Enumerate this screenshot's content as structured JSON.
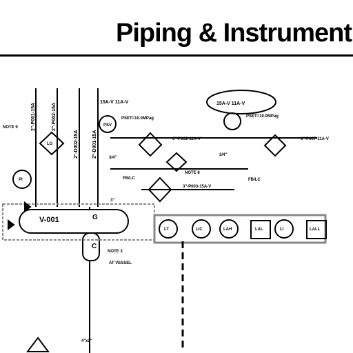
{
  "title": "Piping & Instrument",
  "vessel": {
    "tag": "V-001",
    "nozzle_top": "G",
    "nozzle_bottom": "C"
  },
  "line_labels": {
    "top_left": "15A-V 11A-V",
    "top_right": "15A-V 11A-V",
    "psv_setpoint_left": "PSET=10.0MPag",
    "psv_setpoint_right": "PSET=10.0MPag",
    "line_left": "6\"-P002-11A-V",
    "line_right": "6\"-P007-11A-V",
    "line_mid": "3\"-P003-15A-V",
    "size_left": "3/4\"",
    "size_right": "3/4\"",
    "note_mid": "NOTE 8",
    "note_left": "NOTE 9",
    "fb_left": "FB/LC",
    "fb_right": "FB/LC",
    "size_3in": "3\"",
    "note_3": "NOTE 3",
    "at_vessel": "AT VESSEL",
    "drain": "4\"x2\"",
    "psv_tag": "PSV"
  },
  "vertical_labels": [
    "2\"-P001-15A",
    "2\"-P002-15A",
    "2\"-D002-15A",
    "2\"-D001-15A"
  ],
  "instruments_left": [
    "PI",
    "LG"
  ],
  "instruments_panel": [
    "LT",
    "LIC",
    "LAH",
    "LAL",
    "LI",
    "LALL"
  ],
  "colors": {
    "line": "#000000",
    "panel": "#888888",
    "highlight": "#000000"
  }
}
